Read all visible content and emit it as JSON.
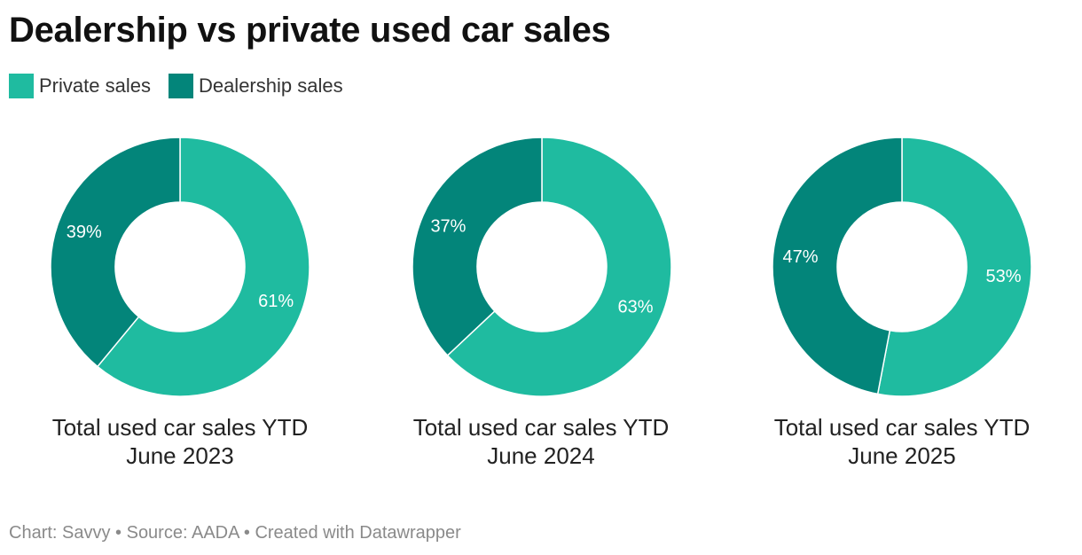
{
  "title": "Dealership vs private used car sales",
  "legend": [
    {
      "label": "Private sales",
      "color": "#1fbba0"
    },
    {
      "label": "Dealership sales",
      "color": "#03857a"
    }
  ],
  "chart_data": [
    {
      "type": "pie",
      "donut": true,
      "caption_line1": "Total used car sales YTD",
      "caption_line2": "June 2023",
      "slices": [
        {
          "name": "Private sales",
          "value": 61,
          "label": "61%"
        },
        {
          "name": "Dealership sales",
          "value": 39,
          "label": "39%"
        }
      ]
    },
    {
      "type": "pie",
      "donut": true,
      "caption_line1": "Total used car sales YTD",
      "caption_line2": "June 2024",
      "slices": [
        {
          "name": "Private sales",
          "value": 63,
          "label": "63%"
        },
        {
          "name": "Dealership sales",
          "value": 37,
          "label": "37%"
        }
      ]
    },
    {
      "type": "pie",
      "donut": true,
      "caption_line1": "Total used car sales YTD",
      "caption_line2": "June 2025",
      "slices": [
        {
          "name": "Private sales",
          "value": 53,
          "label": "53%"
        },
        {
          "name": "Dealership sales",
          "value": 47,
          "label": "47%"
        }
      ]
    }
  ],
  "footer": "Chart: Savvy • Source: AADA • Created with Datawrapper"
}
